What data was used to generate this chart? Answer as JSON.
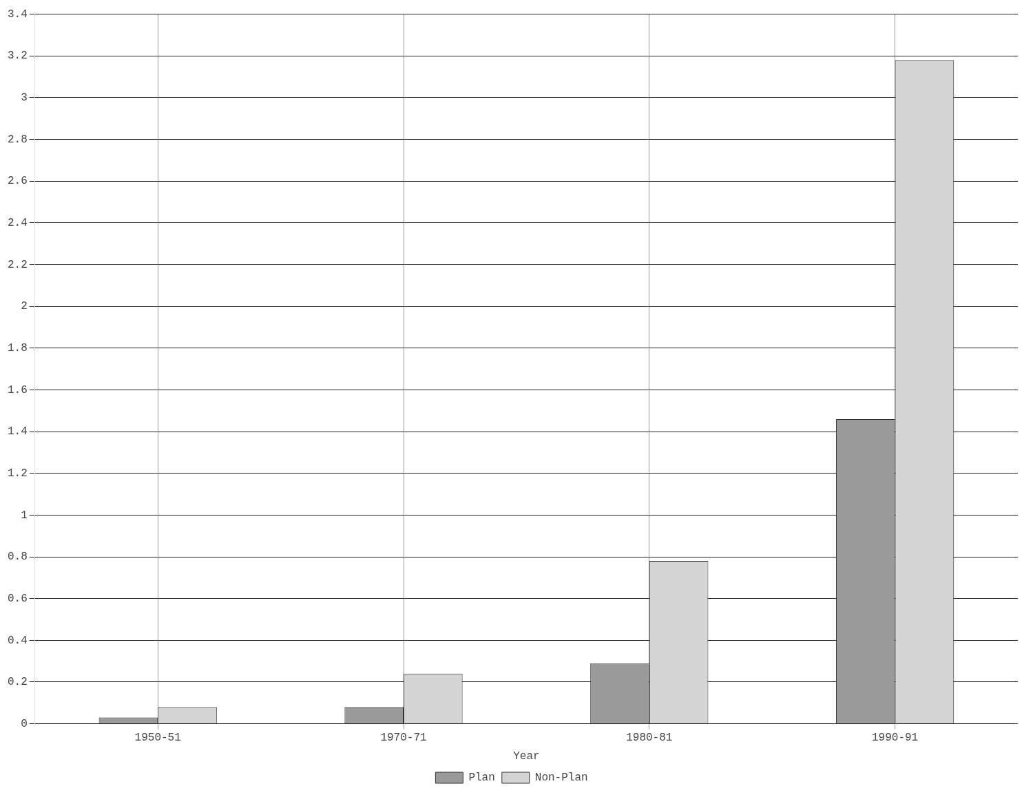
{
  "chart_data": {
    "type": "bar",
    "xlabel": "Year",
    "categories": [
      "1950-51",
      "1970-71",
      "1980-81",
      "1990-91"
    ],
    "series": [
      {
        "name": "Plan",
        "color": "#9a9a9a",
        "values": [
          0.03,
          0.08,
          0.29,
          1.46
        ]
      },
      {
        "name": "Non-Plan",
        "color": "#d4d4d4",
        "values": [
          0.08,
          0.24,
          0.78,
          3.18
        ]
      }
    ],
    "ylim": [
      0,
      3.4
    ],
    "yticks": [
      0,
      0.2,
      0.4,
      0.6,
      0.8,
      1,
      1.2,
      1.4,
      1.6,
      1.8,
      2,
      2.2,
      2.4,
      2.6,
      2.8,
      3,
      3.2,
      3.4
    ],
    "grid": true,
    "legend": "bottom"
  }
}
